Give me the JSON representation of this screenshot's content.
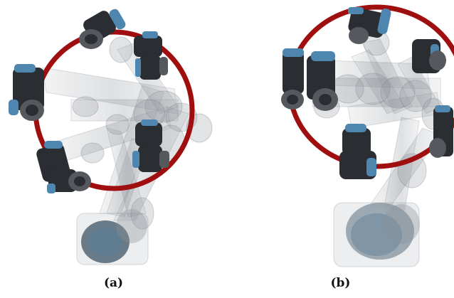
{
  "figure": {
    "panels": [
      {
        "id": "a",
        "label": "(a)",
        "trajectory_color": "#a00f0f"
      },
      {
        "id": "b",
        "label": "(b)",
        "trajectory_color": "#a00f0f"
      }
    ],
    "robot_colors": {
      "body": "#2a2d31",
      "cap": "#4f86b0",
      "ghost": "#8a9096"
    }
  }
}
